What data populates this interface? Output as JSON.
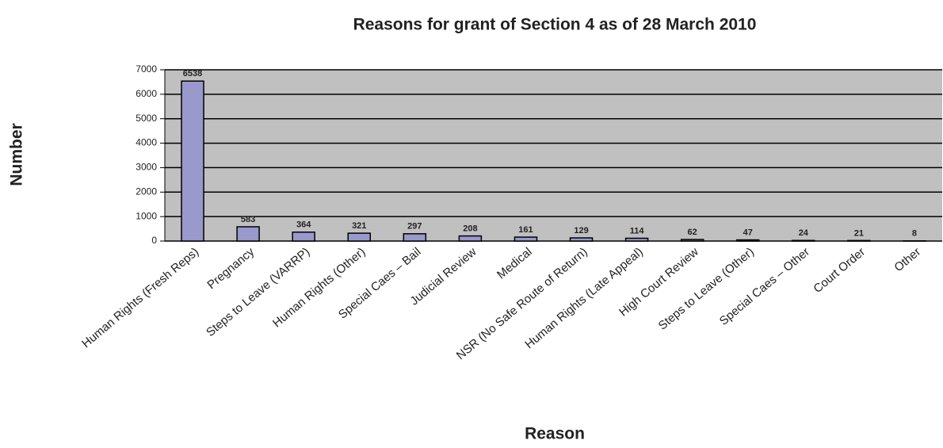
{
  "chart_data": {
    "type": "bar",
    "title": "Reasons for grant of Section 4 as of 28 March 2010",
    "x_label": "Reason",
    "y_label": "Number",
    "categories": [
      "Human Rights (Fresh Reps)",
      "Pregnancy",
      "Steps to Leave (VARRP)",
      "Human Rights (Other)",
      "Special Caes – Bail",
      "Judicial Review",
      "Medical",
      "NSR (No Safe Route of Return)",
      "Human Rights (Late Appeal)",
      "High Court Review",
      "Steps to Leave (Other)",
      "Special Caes – Other",
      "Court Order",
      "Other"
    ],
    "values": [
      6538,
      583,
      364,
      321,
      297,
      208,
      161,
      129,
      114,
      62,
      47,
      24,
      21,
      8
    ],
    "color": "#9999cc",
    "ylim": [
      0,
      7000
    ],
    "yticks": [
      0,
      1000,
      2000,
      3000,
      4000,
      5000,
      6000,
      7000
    ],
    "grid": true
  }
}
